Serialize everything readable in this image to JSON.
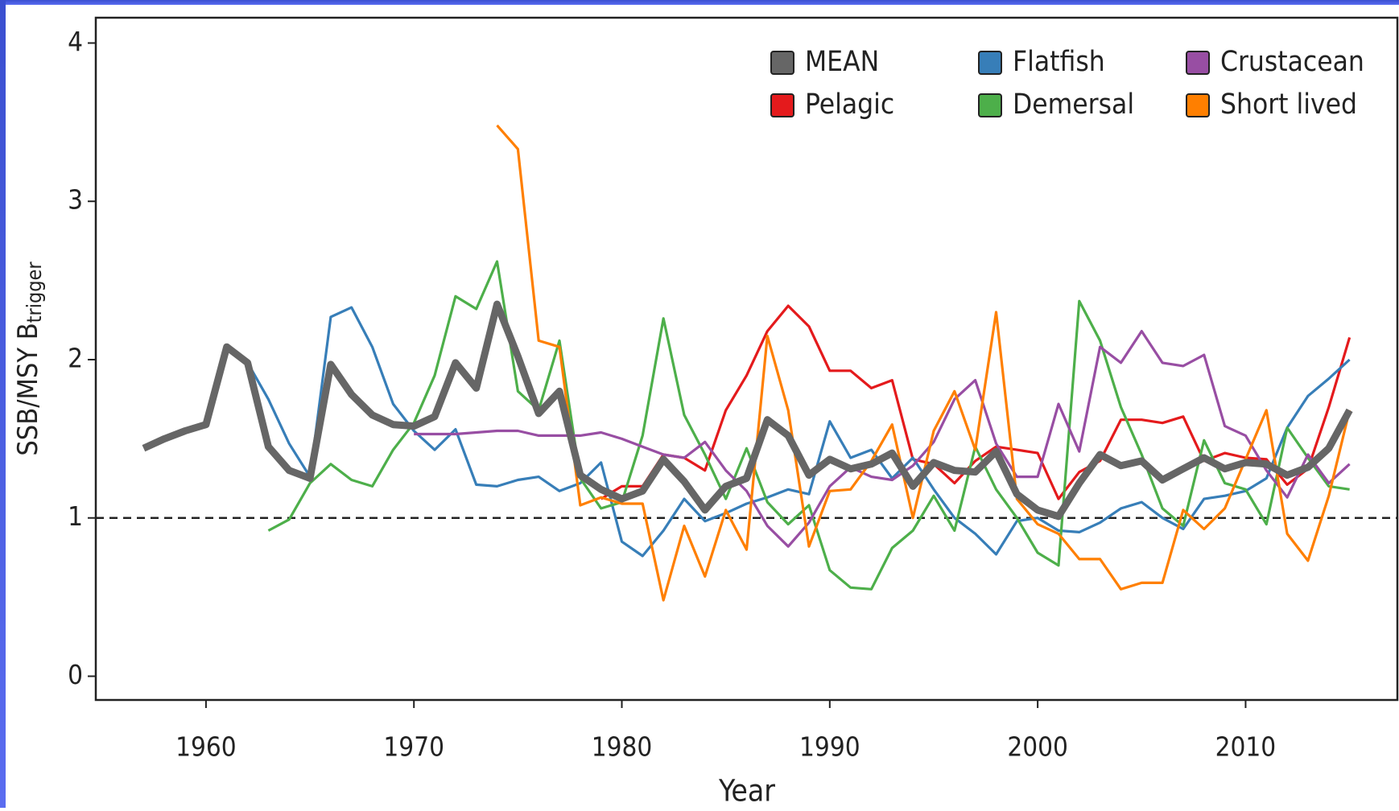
{
  "chart_data": {
    "type": "line",
    "xlabel": "Year",
    "ylabel": "SSB/MSY B",
    "ylabel_sub": "trigger",
    "x": [
      1957,
      1958,
      1959,
      1960,
      1961,
      1962,
      1963,
      1964,
      1965,
      1966,
      1967,
      1968,
      1969,
      1970,
      1971,
      1972,
      1973,
      1974,
      1975,
      1976,
      1977,
      1978,
      1979,
      1980,
      1981,
      1982,
      1983,
      1984,
      1985,
      1986,
      1987,
      1988,
      1989,
      1990,
      1991,
      1992,
      1993,
      1994,
      1995,
      1996,
      1997,
      1998,
      1999,
      2000,
      2001,
      2002,
      2003,
      2004,
      2005,
      2006,
      2007,
      2008,
      2009,
      2010,
      2011,
      2012,
      2013,
      2014,
      2015
    ],
    "series": [
      {
        "name": "MEAN",
        "color": "#666666",
        "values": [
          1.44,
          1.5,
          1.55,
          1.59,
          2.08,
          1.98,
          1.45,
          1.3,
          1.25,
          1.97,
          1.78,
          1.65,
          1.59,
          1.58,
          1.64,
          1.98,
          1.82,
          2.35,
          2.02,
          1.66,
          1.8,
          1.27,
          1.18,
          1.12,
          1.17,
          1.37,
          1.23,
          1.05,
          1.2,
          1.25,
          1.62,
          1.52,
          1.27,
          1.37,
          1.31,
          1.34,
          1.41,
          1.2,
          1.35,
          1.3,
          1.29,
          1.42,
          1.15,
          1.05,
          1.01,
          1.22,
          1.4,
          1.33,
          1.36,
          1.24,
          1.31,
          1.38,
          1.31,
          1.35,
          1.34,
          1.27,
          1.32,
          1.44,
          1.68
        ]
      },
      {
        "name": "Pelagic",
        "color": "#e41a1c",
        "values": [
          null,
          null,
          null,
          null,
          null,
          null,
          null,
          null,
          null,
          null,
          null,
          null,
          null,
          null,
          null,
          null,
          null,
          null,
          null,
          null,
          null,
          null,
          1.12,
          1.2,
          1.2,
          1.4,
          1.38,
          1.3,
          1.68,
          1.9,
          2.18,
          2.34,
          2.21,
          1.93,
          1.93,
          1.82,
          1.87,
          1.37,
          1.34,
          1.22,
          1.36,
          1.45,
          1.43,
          1.41,
          1.12,
          1.29,
          1.36,
          1.62,
          1.62,
          1.6,
          1.64,
          1.36,
          1.41,
          1.38,
          1.37,
          1.21,
          1.31,
          1.7,
          2.14
        ]
      },
      {
        "name": "Flatfish",
        "color": "#377eb8",
        "values": [
          null,
          null,
          null,
          null,
          null,
          1.98,
          1.75,
          1.47,
          1.26,
          2.27,
          2.33,
          2.08,
          1.72,
          1.55,
          1.43,
          1.56,
          1.21,
          1.2,
          1.24,
          1.26,
          1.17,
          1.22,
          1.35,
          0.85,
          0.76,
          0.92,
          1.12,
          0.98,
          1.03,
          1.09,
          1.13,
          1.18,
          1.15,
          1.61,
          1.38,
          1.43,
          1.25,
          1.38,
          1.18,
          1.0,
          0.9,
          0.77,
          0.98,
          1.0,
          0.92,
          0.91,
          0.97,
          1.06,
          1.1,
          1.0,
          0.93,
          1.12,
          1.14,
          1.17,
          1.25,
          1.57,
          1.77,
          1.88,
          2.0
        ]
      },
      {
        "name": "Demersal",
        "color": "#4daf4a",
        "values": [
          null,
          null,
          null,
          null,
          null,
          null,
          0.92,
          0.99,
          1.22,
          1.34,
          1.24,
          1.2,
          1.43,
          1.6,
          1.9,
          2.4,
          2.32,
          2.62,
          1.8,
          1.68,
          2.12,
          1.25,
          1.06,
          1.1,
          1.52,
          2.26,
          1.65,
          1.4,
          1.12,
          1.44,
          1.1,
          0.96,
          1.08,
          0.67,
          0.56,
          0.55,
          0.81,
          0.92,
          1.14,
          0.92,
          1.45,
          1.18,
          1.0,
          0.78,
          0.7,
          2.37,
          2.12,
          1.7,
          1.4,
          1.06,
          0.95,
          1.49,
          1.22,
          1.18,
          0.96,
          1.57,
          1.38,
          1.2,
          1.18
        ]
      },
      {
        "name": "Crustacean",
        "color": "#984ea3",
        "values": [
          null,
          null,
          null,
          null,
          null,
          null,
          null,
          null,
          null,
          null,
          null,
          null,
          null,
          1.53,
          1.53,
          1.53,
          1.54,
          1.55,
          1.55,
          1.52,
          1.52,
          1.52,
          1.54,
          1.5,
          1.45,
          1.4,
          1.38,
          1.48,
          1.3,
          1.17,
          0.95,
          0.82,
          0.97,
          1.2,
          1.32,
          1.26,
          1.24,
          1.33,
          1.48,
          1.75,
          1.87,
          1.47,
          1.26,
          1.26,
          1.72,
          1.42,
          2.08,
          1.98,
          2.18,
          1.98,
          1.96,
          2.03,
          1.58,
          1.52,
          1.3,
          1.13,
          1.4,
          1.22,
          1.34
        ]
      },
      {
        "name": "Short lived",
        "color": "#ff7f00",
        "values": [
          null,
          null,
          null,
          null,
          null,
          null,
          null,
          null,
          null,
          null,
          null,
          null,
          null,
          null,
          null,
          null,
          null,
          3.48,
          3.33,
          2.12,
          2.08,
          1.08,
          1.13,
          1.09,
          1.09,
          0.48,
          0.95,
          0.63,
          1.05,
          0.8,
          2.15,
          1.68,
          0.82,
          1.17,
          1.18,
          1.36,
          1.59,
          1.0,
          1.55,
          1.8,
          1.43,
          2.3,
          1.12,
          0.96,
          0.9,
          0.74,
          0.74,
          0.55,
          0.59,
          0.59,
          1.05,
          0.93,
          1.06,
          1.37,
          1.68,
          0.9,
          0.73,
          1.14,
          1.68
        ]
      }
    ],
    "xlim": [
      1954.7,
      2017.3
    ],
    "xticks": [
      1960,
      1970,
      1980,
      1990,
      2000,
      2010
    ],
    "ylim": [
      -0.15,
      4.16
    ],
    "yticks": [
      0,
      1,
      2,
      3,
      4
    ],
    "hline": 1,
    "legend": "upper right"
  }
}
